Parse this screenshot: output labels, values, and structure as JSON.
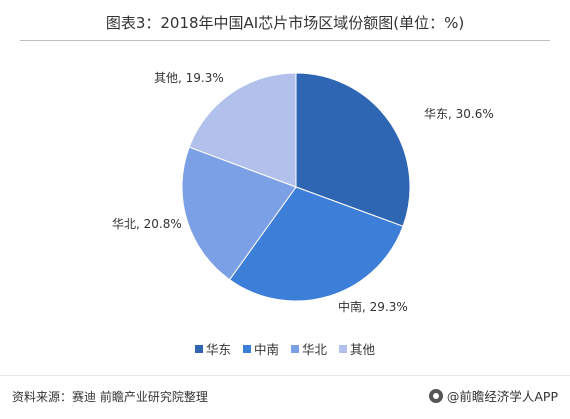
{
  "title": "图表3：2018年中国AI芯片市场区域份额图(单位：%)",
  "chart_data": {
    "type": "pie",
    "title": "图表3：2018年中国AI芯片市场区域份额图(单位：%)",
    "categories": [
      "华东",
      "中南",
      "华北",
      "其他"
    ],
    "values": [
      30.6,
      29.3,
      20.8,
      19.3
    ],
    "unit": "%",
    "labels": [
      "华东, 30.6%",
      "中南, 29.3%",
      "华北, 20.8%",
      "其他, 19.3%"
    ],
    "colors": [
      "#2e66b4",
      "#3d7ed8",
      "#7ca0e5",
      "#b2c1ec"
    ],
    "start_angle_deg": 0,
    "direction": "clockwise",
    "legend_position": "bottom"
  },
  "legend": {
    "items": [
      {
        "label": "华东",
        "color": "#2e66b4"
      },
      {
        "label": "中南",
        "color": "#3d7ed8"
      },
      {
        "label": "华北",
        "color": "#7ca0e5"
      },
      {
        "label": "其他",
        "color": "#b2c1ec"
      }
    ]
  },
  "footer": {
    "source": "资料来源：赛迪 前瞻产业研究院整理",
    "brand": "@前瞻经济学人APP"
  }
}
